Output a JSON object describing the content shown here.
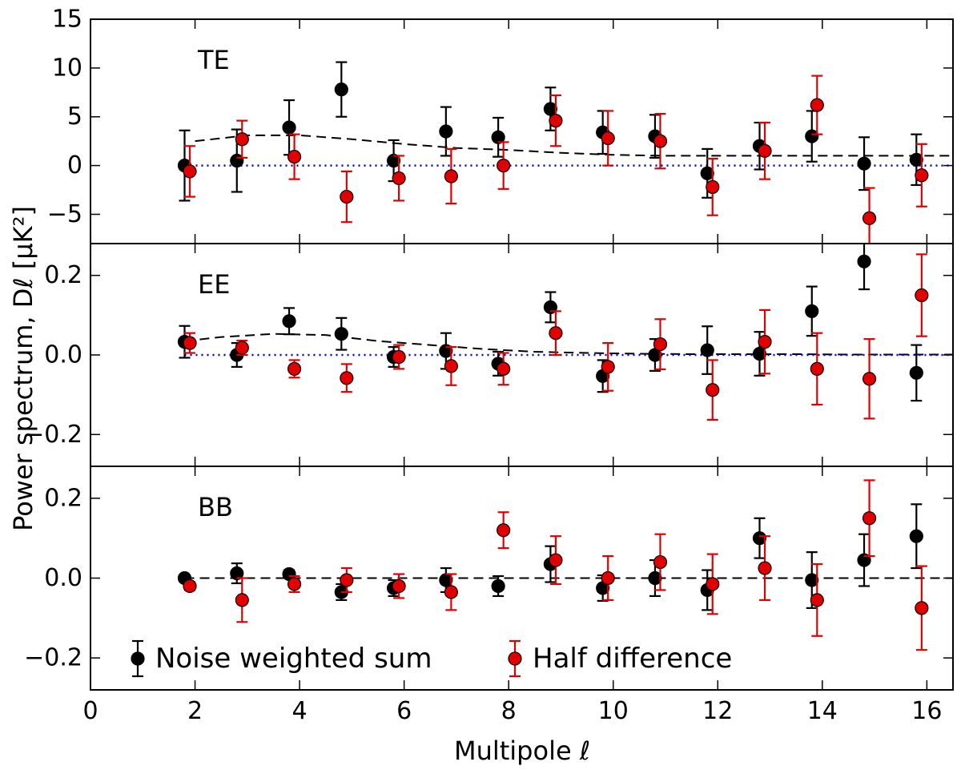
{
  "chart_data": {
    "type": "scatter",
    "xlabel": "Multipole ℓ",
    "ylabel": "Power spectrum, Dℓ [μK²]",
    "xlim": [
      0,
      16.5
    ],
    "xticks": [
      "0",
      "2",
      "4",
      "6",
      "8",
      "10",
      "12",
      "14",
      "16"
    ],
    "legend": {
      "placement": "bottom-left",
      "entries": [
        {
          "name": "Noise weighted sum",
          "color": "#000000"
        },
        {
          "name": "Half difference",
          "color": "#e00000"
        }
      ]
    },
    "colors": {
      "sum": "#000000",
      "diff": "#e00000",
      "zero_line": "#0000cc"
    },
    "panels": [
      {
        "label": "TE",
        "ylim": [
          -8,
          15
        ],
        "yticks": [
          "−5",
          "0",
          "5",
          "10",
          "15"
        ],
        "ytick_values": [
          -5,
          0,
          5,
          10,
          15
        ],
        "lines": [
          {
            "style": "dashed",
            "color": "#000000",
            "x": [
              2,
              3,
              4,
              5,
              6,
              7,
              8,
              9,
              10,
              11,
              12,
              13,
              14,
              15,
              16,
              16.5
            ],
            "y": [
              2.5,
              3.1,
              3.1,
              2.7,
              2.2,
              1.8,
              1.6,
              1.3,
              1.1,
              1.0,
              1.0,
              1.0,
              1.0,
              1.0,
              1.0,
              1.0
            ]
          },
          {
            "style": "dotted",
            "color": "#0000cc",
            "x": [
              1.8,
              16.5
            ],
            "y": [
              0,
              0
            ]
          }
        ],
        "series": [
          {
            "name": "Noise weighted sum",
            "x": [
              1.8,
              2.8,
              3.8,
              4.8,
              5.8,
              6.8,
              7.8,
              8.8,
              9.8,
              10.8,
              11.8,
              12.8,
              13.8,
              14.8,
              15.8
            ],
            "y": [
              0.0,
              0.5,
              3.9,
              7.8,
              0.5,
              3.5,
              2.9,
              5.8,
              3.4,
              3.0,
              -0.8,
              2.0,
              3.0,
              0.2,
              0.6
            ],
            "err": [
              3.6,
              3.2,
              2.8,
              2.8,
              2.1,
              2.5,
              2.0,
              2.2,
              2.2,
              2.2,
              2.5,
              2.4,
              2.6,
              2.7,
              2.6
            ]
          },
          {
            "name": "Half difference",
            "x": [
              1.9,
              2.9,
              3.9,
              4.9,
              5.9,
              6.9,
              7.9,
              8.9,
              9.9,
              10.9,
              11.9,
              12.9,
              13.9,
              14.9,
              15.9
            ],
            "y": [
              -0.6,
              2.7,
              0.9,
              -3.2,
              -1.3,
              -1.1,
              0.0,
              4.6,
              2.8,
              2.5,
              -2.2,
              1.5,
              6.2,
              -5.4,
              -1.0
            ],
            "err": [
              2.6,
              1.9,
              2.3,
              2.6,
              2.3,
              2.8,
              2.4,
              2.6,
              2.8,
              2.8,
              2.9,
              2.9,
              3.0,
              3.1,
              3.2
            ]
          }
        ]
      },
      {
        "label": "EE",
        "ylim": [
          -0.28,
          0.28
        ],
        "yticks": [
          "−0.2",
          "0.0",
          "0.2"
        ],
        "ytick_values": [
          -0.2,
          0.0,
          0.2
        ],
        "lines": [
          {
            "style": "dashed",
            "color": "#000000",
            "x": [
              1.8,
              2.5,
              3.5,
              4.5,
              5.5,
              6.5,
              7.5,
              8.5,
              9.5,
              10.5,
              11.5,
              12.5,
              13.5,
              14.5,
              15.5,
              16.5
            ],
            "y": [
              0.035,
              0.045,
              0.053,
              0.05,
              0.035,
              0.025,
              0.015,
              0.008,
              0.005,
              0.003,
              0.002,
              0.002,
              0.002,
              0.001,
              0.001,
              0.001
            ]
          },
          {
            "style": "dotted",
            "color": "#0000cc",
            "x": [
              1.8,
              16.5
            ],
            "y": [
              0,
              0
            ]
          }
        ],
        "series": [
          {
            "name": "Noise weighted sum",
            "x": [
              1.8,
              2.8,
              3.8,
              4.8,
              5.8,
              6.8,
              7.8,
              8.8,
              9.8,
              10.8,
              11.8,
              12.8,
              13.8,
              14.8,
              15.8
            ],
            "y": [
              0.033,
              0.0,
              0.085,
              0.053,
              -0.005,
              0.01,
              -0.022,
              0.12,
              -0.053,
              0.0,
              0.012,
              0.003,
              0.11,
              0.235,
              -0.045
            ],
            "err": [
              0.04,
              0.03,
              0.033,
              0.04,
              0.025,
              0.045,
              0.03,
              0.038,
              0.04,
              0.04,
              0.06,
              0.055,
              0.062,
              0.07,
              0.07
            ]
          },
          {
            "name": "Half difference",
            "x": [
              1.9,
              2.9,
              3.9,
              4.9,
              5.9,
              6.9,
              7.9,
              8.9,
              9.9,
              10.9,
              11.9,
              12.9,
              13.9,
              14.9,
              15.9
            ],
            "y": [
              0.03,
              0.018,
              -0.035,
              -0.058,
              -0.005,
              -0.028,
              -0.035,
              0.055,
              -0.03,
              0.027,
              -0.088,
              0.033,
              -0.035,
              -0.06,
              0.15
            ],
            "err": [
              0.025,
              0.018,
              0.022,
              0.035,
              0.03,
              0.048,
              0.04,
              0.055,
              0.06,
              0.063,
              0.075,
              0.08,
              0.09,
              0.1,
              0.103
            ]
          }
        ]
      },
      {
        "label": "BB",
        "ylim": [
          -0.28,
          0.28
        ],
        "yticks": [
          "−0.2",
          "0.0",
          "0.2"
        ],
        "ytick_values": [
          -0.2,
          0.0,
          0.2
        ],
        "lines": [
          {
            "style": "dashed",
            "color": "#000000",
            "x": [
              1.8,
              16.5
            ],
            "y": [
              0,
              0
            ]
          }
        ],
        "series": [
          {
            "name": "Noise weighted sum",
            "x": [
              1.8,
              2.8,
              3.8,
              4.8,
              5.8,
              6.8,
              7.8,
              8.8,
              9.8,
              10.8,
              11.8,
              12.8,
              13.8,
              14.8,
              15.8
            ],
            "y": [
              0.0,
              0.012,
              0.01,
              -0.035,
              -0.025,
              -0.005,
              -0.02,
              0.035,
              -0.025,
              0.0,
              -0.03,
              0.1,
              -0.005,
              0.045,
              0.105
            ],
            "err": [
              0.008,
              0.025,
              0.01,
              0.02,
              0.02,
              0.03,
              0.025,
              0.045,
              0.032,
              0.045,
              0.05,
              0.05,
              0.07,
              0.065,
              0.08
            ]
          },
          {
            "name": "Half difference",
            "x": [
              1.9,
              2.9,
              3.9,
              4.9,
              5.9,
              6.9,
              7.9,
              8.9,
              9.9,
              10.9,
              11.9,
              12.9,
              13.9,
              14.9,
              15.9
            ],
            "y": [
              -0.02,
              -0.055,
              -0.015,
              -0.005,
              -0.02,
              -0.035,
              0.12,
              0.045,
              0.0,
              0.04,
              -0.015,
              0.025,
              -0.055,
              0.15,
              -0.075
            ],
            "err": [
              0.01,
              0.055,
              0.02,
              0.03,
              0.03,
              0.045,
              0.045,
              0.06,
              0.055,
              0.07,
              0.075,
              0.08,
              0.09,
              0.095,
              0.105
            ]
          }
        ]
      }
    ]
  }
}
